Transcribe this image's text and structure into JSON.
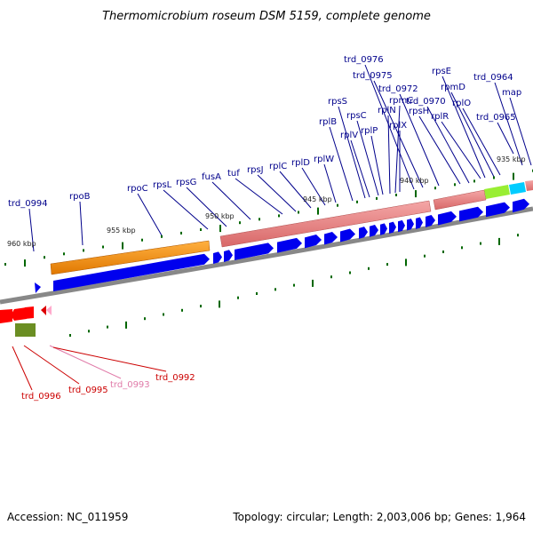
{
  "title": "Thermomicrobium roseum DSM 5159, complete genome",
  "footer": {
    "accession": "Accession: NC_011959",
    "summary": "Topology: circular; Length: 2,003,006 bp; Genes: 1,964"
  },
  "colors": {
    "label_top": "#00008b",
    "label_red": "#cc0000",
    "label_pink": "#e07aa8",
    "backbone": "#888888",
    "gene_blue": "#0000ee",
    "gene_red": "#ff0000",
    "gene_pink": "#ffaacc",
    "orange": "#ff9900",
    "salmon": "#e88080",
    "lime": "#99ee33",
    "cyan": "#00ccff",
    "olive": "#6b8e23",
    "tick_green": "#006600"
  },
  "ticks": [
    "960 kbp",
    "955 kbp",
    "950 kbp",
    "945 kbp",
    "940 kbp",
    "935 kbp"
  ],
  "top_labels": [
    "trd_0994",
    "rpoB",
    "rpoC",
    "rpsL",
    "rpsG",
    "fusA",
    "tuf",
    "rpsJ",
    "rplC",
    "rplD",
    "rplW",
    "rplB",
    "rpsS",
    "rplV",
    "rpsC",
    "rplP",
    "rplN",
    "rpmC",
    "rplX",
    "trd_0976",
    "trd_0975",
    "trd_0972",
    "rpsH",
    "trd_0970",
    "rplR",
    "rpsE",
    "rpmD",
    "rplO",
    "trd_0965",
    "trd_0964",
    "map"
  ],
  "bottom_labels": [
    "trd_0996",
    "trd_0995",
    "trd_0993",
    "trd_0992"
  ]
}
